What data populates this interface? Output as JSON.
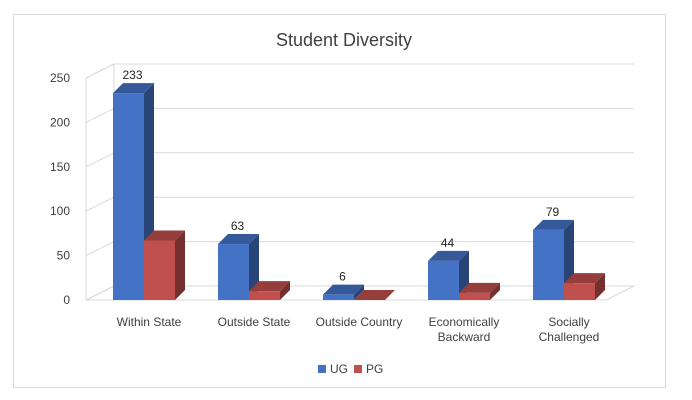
{
  "chart_data": {
    "type": "bar",
    "title": "Student Diversity",
    "categories": [
      [
        "Within State"
      ],
      [
        "Outside State"
      ],
      [
        "Outside Country"
      ],
      [
        "Economically",
        "Backward"
      ],
      [
        "Socially",
        "Challenged"
      ]
    ],
    "series": [
      {
        "name": "UG",
        "color": "#4472c4",
        "values": [
          233,
          63,
          6,
          44,
          79
        ],
        "labels": [
          "233",
          "63",
          "6",
          "44",
          "79"
        ]
      },
      {
        "name": "PG",
        "color": "#c0504d",
        "values": [
          67,
          10,
          0,
          8,
          19
        ],
        "labels": [
          "",
          "",
          "",
          "",
          ""
        ]
      }
    ],
    "y_ticks": [
      "0",
      "50",
      "100",
      "150",
      "200",
      "250"
    ],
    "ylim": [
      0,
      250
    ],
    "grid": true,
    "legend": "bottom",
    "style": "3d-clustered-column"
  }
}
